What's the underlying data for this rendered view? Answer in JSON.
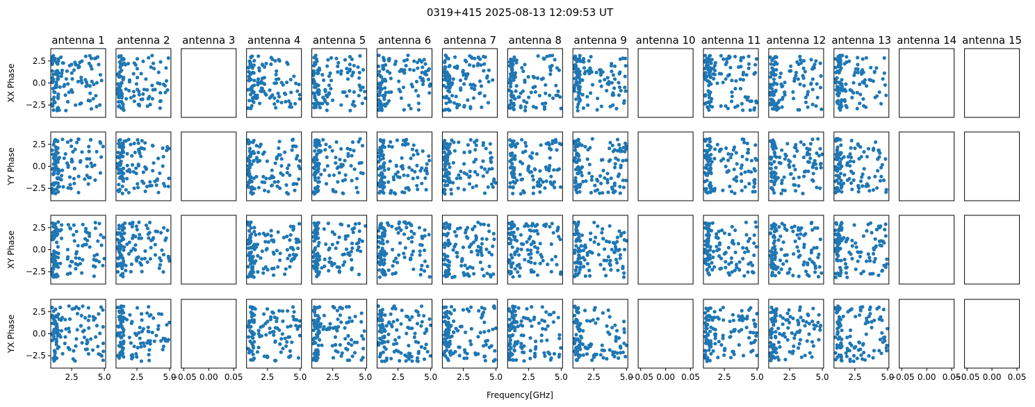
{
  "chart_data": {
    "type": "scatter",
    "title": "0319+415 2025-08-13 12:09:53 UT",
    "xlabel": "Frequency[GHz]",
    "columns": [
      "antenna 1",
      "antenna 2",
      "antenna 3",
      "antenna 4",
      "antenna 5",
      "antenna 6",
      "antenna 7",
      "antenna 8",
      "antenna 9",
      "antenna 10",
      "antenna 11",
      "antenna 12",
      "antenna 13",
      "antenna 14",
      "antenna 15"
    ],
    "rows": [
      "XX Phase",
      "YY Phase",
      "XY Phase",
      "YX Phase"
    ],
    "empty_columns": [
      2,
      9,
      13,
      14
    ],
    "xlim": [
      0.9,
      5.1
    ],
    "ylim": [
      -3.9,
      3.9
    ],
    "yticks": [
      -2.5,
      0.0,
      2.5
    ],
    "ytick_labels": [
      "−2.5",
      "0.0",
      "2.5"
    ],
    "xticks": [
      2.5,
      5.0
    ],
    "xtick_labels": [
      "2.5",
      "5.0"
    ],
    "empty_xlim": [
      -0.055,
      0.055
    ],
    "empty_xticks": [
      -0.05,
      0.0,
      0.05
    ],
    "empty_xtick_labels": [
      "−0.05",
      "0.00",
      "0.05"
    ],
    "marker_color": "#1f77b4",
    "points_per_panel": 120,
    "frequency_range_ghz": [
      1.0,
      5.0
    ],
    "phase_range_rad": [
      -3.14,
      3.14
    ],
    "note_x_ticks_shown_on": "bottom row only",
    "note_y_ticks_shown_on": "first column only"
  }
}
